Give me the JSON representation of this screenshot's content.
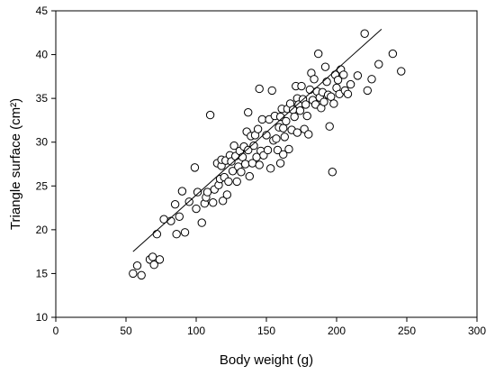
{
  "chart_data": {
    "type": "scatter",
    "title": "",
    "xlabel": "Body weight (g)",
    "ylabel": "Triangle surface (cm²)",
    "xlim": [
      0,
      300
    ],
    "ylim": [
      10,
      45
    ],
    "xticks": [
      0,
      50,
      100,
      150,
      200,
      250,
      300
    ],
    "yticks": [
      10,
      15,
      20,
      25,
      30,
      35,
      40,
      45
    ],
    "grid": false,
    "legend": "none",
    "marker": "open-circle",
    "trendline": {
      "x": [
        55,
        232
      ],
      "y": [
        17.5,
        42.9
      ]
    },
    "points": [
      [
        55,
        15.0
      ],
      [
        58,
        15.9
      ],
      [
        61,
        14.8
      ],
      [
        67,
        16.6
      ],
      [
        69,
        16.9
      ],
      [
        70,
        16.0
      ],
      [
        72,
        19.5
      ],
      [
        74,
        16.6
      ],
      [
        77,
        21.2
      ],
      [
        82,
        21.0
      ],
      [
        85,
        22.9
      ],
      [
        86,
        19.5
      ],
      [
        88,
        21.5
      ],
      [
        90,
        24.4
      ],
      [
        92,
        19.7
      ],
      [
        95,
        23.2
      ],
      [
        99,
        27.1
      ],
      [
        100,
        22.4
      ],
      [
        101,
        24.3
      ],
      [
        104,
        20.8
      ],
      [
        106,
        23.0
      ],
      [
        107,
        23.7
      ],
      [
        108,
        24.3
      ],
      [
        110,
        33.1
      ],
      [
        112,
        23.1
      ],
      [
        113,
        24.6
      ],
      [
        115,
        27.6
      ],
      [
        116,
        25.1
      ],
      [
        117,
        25.8
      ],
      [
        118,
        27.3
      ],
      [
        118,
        28.0
      ],
      [
        119,
        23.3
      ],
      [
        120,
        26.0
      ],
      [
        121,
        27.9
      ],
      [
        122,
        24.0
      ],
      [
        123,
        25.5
      ],
      [
        124,
        28.5
      ],
      [
        125,
        27.8
      ],
      [
        126,
        26.7
      ],
      [
        127,
        29.6
      ],
      [
        128,
        28.4
      ],
      [
        129,
        25.5
      ],
      [
        130,
        27.2
      ],
      [
        131,
        29.0
      ],
      [
        132,
        26.6
      ],
      [
        133,
        28.3
      ],
      [
        134,
        29.5
      ],
      [
        135,
        27.5
      ],
      [
        136,
        31.2
      ],
      [
        137,
        33.4
      ],
      [
        137,
        29.1
      ],
      [
        138,
        26.1
      ],
      [
        139,
        30.7
      ],
      [
        140,
        27.6
      ],
      [
        141,
        29.6
      ],
      [
        142,
        30.8
      ],
      [
        143,
        28.3
      ],
      [
        144,
        31.5
      ],
      [
        145,
        27.4
      ],
      [
        145,
        36.1
      ],
      [
        146,
        29.0
      ],
      [
        147,
        32.6
      ],
      [
        148,
        28.5
      ],
      [
        150,
        30.8
      ],
      [
        151,
        29.1
      ],
      [
        152,
        32.6
      ],
      [
        153,
        27.0
      ],
      [
        154,
        35.9
      ],
      [
        155,
        30.2
      ],
      [
        156,
        33.0
      ],
      [
        157,
        30.4
      ],
      [
        158,
        29.1
      ],
      [
        159,
        31.7
      ],
      [
        160,
        32.9
      ],
      [
        160,
        27.6
      ],
      [
        161,
        33.8
      ],
      [
        162,
        28.6
      ],
      [
        162,
        31.6
      ],
      [
        163,
        30.6
      ],
      [
        164,
        32.4
      ],
      [
        165,
        33.8
      ],
      [
        166,
        29.2
      ],
      [
        167,
        34.4
      ],
      [
        168,
        31.4
      ],
      [
        169,
        33.7
      ],
      [
        170,
        32.9
      ],
      [
        171,
        36.4
      ],
      [
        172,
        31.1
      ],
      [
        172,
        35.0
      ],
      [
        173,
        34.3
      ],
      [
        174,
        33.6
      ],
      [
        175,
        36.4
      ],
      [
        176,
        34.9
      ],
      [
        177,
        31.5
      ],
      [
        178,
        34.3
      ],
      [
        179,
        33.0
      ],
      [
        180,
        30.9
      ],
      [
        181,
        36.0
      ],
      [
        182,
        37.9
      ],
      [
        183,
        34.8
      ],
      [
        184,
        37.2
      ],
      [
        185,
        34.3
      ],
      [
        186,
        35.8
      ],
      [
        187,
        40.1
      ],
      [
        188,
        35.1
      ],
      [
        189,
        33.9
      ],
      [
        190,
        35.7
      ],
      [
        191,
        34.6
      ],
      [
        192,
        38.6
      ],
      [
        193,
        36.9
      ],
      [
        194,
        35.4
      ],
      [
        195,
        31.8
      ],
      [
        196,
        35.2
      ],
      [
        197,
        26.6
      ],
      [
        198,
        34.4
      ],
      [
        199,
        37.7
      ],
      [
        200,
        36.2
      ],
      [
        201,
        37.1
      ],
      [
        202,
        35.5
      ],
      [
        203,
        38.3
      ],
      [
        205,
        37.7
      ],
      [
        206,
        35.9
      ],
      [
        208,
        35.5
      ],
      [
        210,
        36.6
      ],
      [
        215,
        37.6
      ],
      [
        220,
        42.4
      ],
      [
        222,
        35.9
      ],
      [
        225,
        37.2
      ],
      [
        230,
        38.9
      ],
      [
        240,
        40.1
      ],
      [
        246,
        38.1
      ]
    ]
  }
}
